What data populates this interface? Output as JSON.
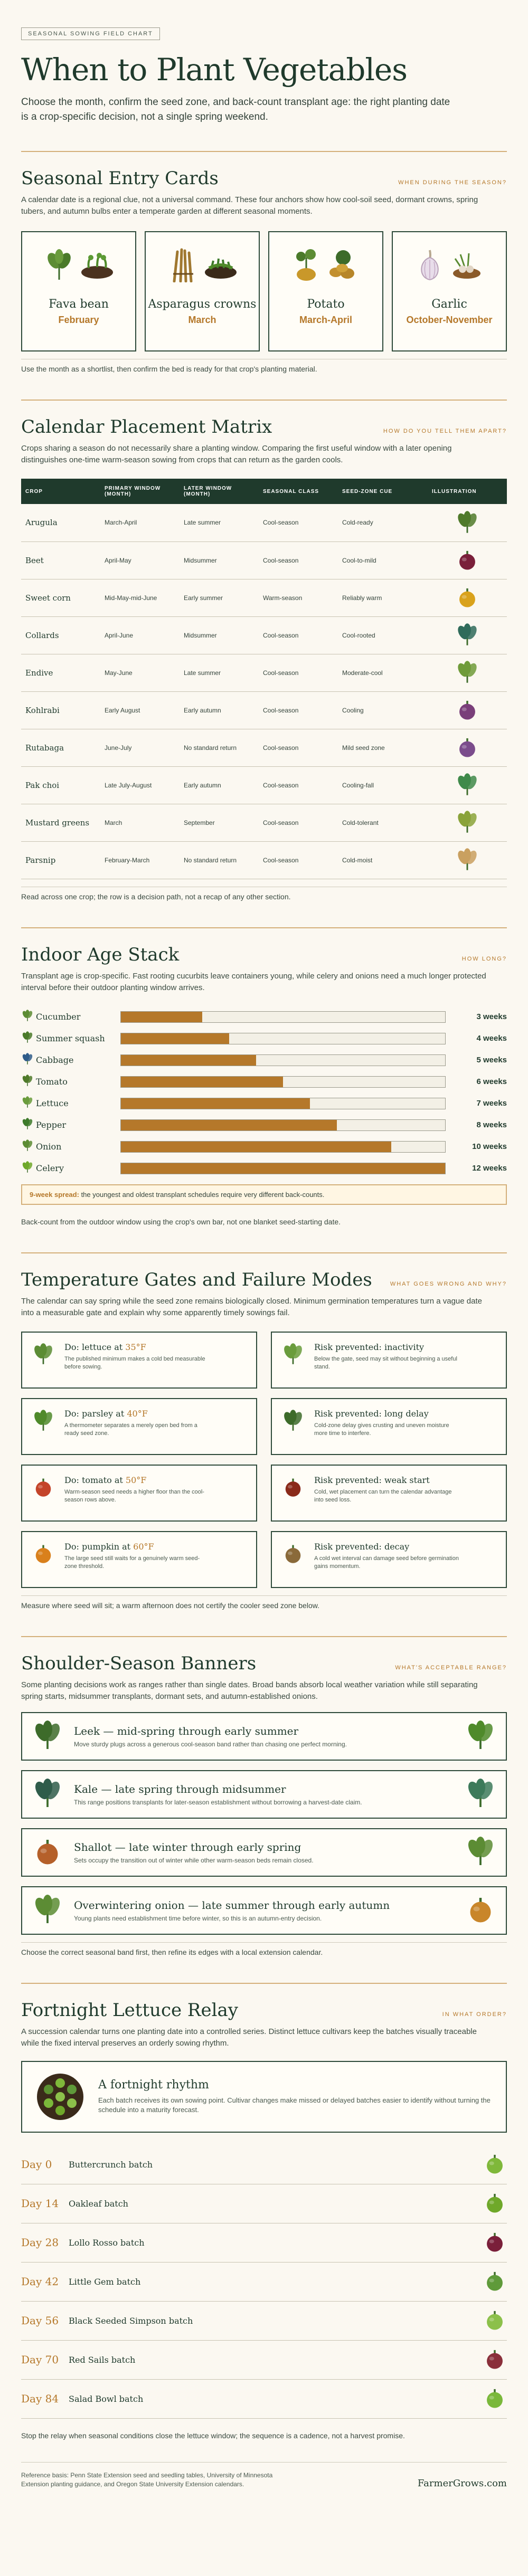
{
  "header": {
    "tag": "SEASONAL SOWING FIELD CHART",
    "title": "When to Plant Vegetables",
    "lede": "Choose the month, confirm the seed zone, and back-count transplant age: the right planting date is a crop-specific decision, not a single spring weekend."
  },
  "entry": {
    "title": "Seasonal Entry Cards",
    "kicker": "WHEN DURING THE SEASON?",
    "intro": "A calendar date is a regional clue, not a universal command. These four anchors show how cool-soil seed, dormant crowns, spring tubers, and autumn bulbs enter a temperate garden at different seasonal moments.",
    "cards": [
      {
        "name": "Fava bean",
        "month": "February",
        "icons": [
          "fava-leaves-icon",
          "soil-sprouts-icon"
        ]
      },
      {
        "name": "Asparagus crowns",
        "month": "March",
        "icons": [
          "asparagus-spears-icon",
          "soil-sprouts-icon"
        ]
      },
      {
        "name": "Potato",
        "month": "March-April",
        "icons": [
          "potato-plant-icon",
          "potato-pile-icon"
        ]
      },
      {
        "name": "Garlic",
        "month": "October-November",
        "icons": [
          "garlic-bulb-icon",
          "garlic-basket-icon"
        ]
      }
    ],
    "note": "Use the month as a shortlist, then confirm the bed is ready for that crop's planting material."
  },
  "matrix": {
    "title": "Calendar Placement Matrix",
    "kicker": "HOW DO YOU TELL THEM APART?",
    "intro": "Crops sharing a season do not necessarily share a planting window. Comparing the first useful window with a later opening distinguishes one-time warm-season sowing from crops that can return as the garden cools.",
    "columns": [
      "CROP",
      "PRIMARY WINDOW (MONTH)",
      "LATER WINDOW (MONTH)",
      "SEASONAL CLASS",
      "SEED-ZONE CUE",
      "ILLUSTRATION"
    ],
    "rows": [
      {
        "crop": "Arugula",
        "primary": "March-April",
        "later": "Late summer",
        "class": "Cool-season",
        "cue": "Cold-ready",
        "icon": "arugula-icon",
        "color": "#4f7a2a"
      },
      {
        "crop": "Beet",
        "primary": "April-May",
        "later": "Midsummer",
        "class": "Cool-season",
        "cue": "Cool-to-mild",
        "icon": "beet-icon",
        "color": "#7a1f3a"
      },
      {
        "crop": "Sweet corn",
        "primary": "Mid-May-mid-June",
        "later": "Early summer",
        "class": "Warm-season",
        "cue": "Reliably warm",
        "icon": "corn-icon",
        "color": "#d9a21c"
      },
      {
        "crop": "Collards",
        "primary": "April-June",
        "later": "Midsummer",
        "class": "Cool-season",
        "cue": "Cool-rooted",
        "icon": "collards-icon",
        "color": "#2f6b5a"
      },
      {
        "crop": "Endive",
        "primary": "May-June",
        "later": "Late summer",
        "class": "Cool-season",
        "cue": "Moderate-cool",
        "icon": "endive-icon",
        "color": "#6f9b3a"
      },
      {
        "crop": "Kohlrabi",
        "primary": "Early August",
        "later": "Early autumn",
        "class": "Cool-season",
        "cue": "Cooling",
        "icon": "kohlrabi-icon",
        "color": "#7a3f7a"
      },
      {
        "crop": "Rutabaga",
        "primary": "June-July",
        "later": "No standard return",
        "class": "Cool-season",
        "cue": "Mild seed zone",
        "icon": "rutabaga-icon",
        "color": "#7b4c8c"
      },
      {
        "crop": "Pak choi",
        "primary": "Late July-August",
        "later": "Early autumn",
        "class": "Cool-season",
        "cue": "Cooling-fall",
        "icon": "pak-choi-icon",
        "color": "#3f8a4a"
      },
      {
        "crop": "Mustard greens",
        "primary": "March",
        "later": "September",
        "class": "Cool-season",
        "cue": "Cold-tolerant",
        "icon": "mustard-greens-icon",
        "color": "#8aa33a"
      },
      {
        "crop": "Parsnip",
        "primary": "February-March",
        "later": "No standard return",
        "class": "Cool-season",
        "cue": "Cold-moist",
        "icon": "parsnip-icon",
        "color": "#c9a060"
      }
    ],
    "note": "Read across one crop; the row is a decision path, not a recap of any other section."
  },
  "age": {
    "title": "Indoor Age Stack",
    "kicker": "HOW LONG?",
    "intro": "Transplant age is crop-specific. Fast rooting cucurbits leave containers young, while celery and onions need a much longer protected interval before their outdoor planting window arrives.",
    "max_weeks": 12,
    "rows": [
      {
        "crop": "Cucumber",
        "weeks": 3,
        "label": "3 weeks",
        "icon": "cucumber-leaf-icon"
      },
      {
        "crop": "Summer squash",
        "weeks": 4,
        "label": "4 weeks",
        "icon": "squash-leaf-icon"
      },
      {
        "crop": "Cabbage",
        "weeks": 5,
        "label": "5 weeks",
        "icon": "cabbage-icon"
      },
      {
        "crop": "Tomato",
        "weeks": 6,
        "label": "6 weeks",
        "icon": "tomato-seedling-icon"
      },
      {
        "crop": "Lettuce",
        "weeks": 7,
        "label": "7 weeks",
        "icon": "lettuce-icon"
      },
      {
        "crop": "Pepper",
        "weeks": 8,
        "label": "8 weeks",
        "icon": "pepper-seedling-icon"
      },
      {
        "crop": "Onion",
        "weeks": 10,
        "label": "10 weeks",
        "icon": "onion-sprout-icon"
      },
      {
        "crop": "Celery",
        "weeks": 12,
        "label": "12 weeks",
        "icon": "celery-icon"
      }
    ],
    "callout_strong": "9-week spread:",
    "callout_rest": "the youngest and oldest transplant schedules require very different back-counts.",
    "note": "Back-count from the outdoor window using the crop's own bar, not one blanket seed-starting date."
  },
  "gates": {
    "title": "Temperature Gates and Failure Modes",
    "kicker": "WHAT GOES WRONG AND WHY?",
    "intro": "The calendar can say spring while the seed zone remains biologically closed. Minimum germination temperatures turn a vague date into a measurable gate and explain why some apparently timely sowings fail.",
    "items": [
      {
        "title": "Do: lettuce at ",
        "temp": "35°F",
        "text": "The published minimum makes a cold bed measurable before sowing.",
        "icon": "lettuce-thermometer-icon"
      },
      {
        "title": "Risk prevented: inactivity",
        "temp": "",
        "text": "Below the gate, seed may sit without beginning a useful stand.",
        "icon": "lettuce-head-icon"
      },
      {
        "title": "Do: parsley at ",
        "temp": "40°F",
        "text": "A thermometer separates a merely open bed from a ready seed zone.",
        "icon": "parsley-icon"
      },
      {
        "title": "Risk prevented: long delay",
        "temp": "",
        "text": "Cold-zone delay gives crusting and uneven moisture more time to interfere.",
        "icon": "parsley-bush-icon"
      },
      {
        "title": "Do: tomato at ",
        "temp": "50°F",
        "text": "Warm-season seed needs a higher floor than the cool-season rows above.",
        "icon": "tomato-icon"
      },
      {
        "title": "Risk prevented: weak start",
        "temp": "",
        "text": "Cold, wet placement can turn the calendar advantage into seed loss.",
        "icon": "tomato-rotting-icon"
      },
      {
        "title": "Do: pumpkin at ",
        "temp": "60°F",
        "text": "The large seed still waits for a genuinely warm seed-zone threshold.",
        "icon": "pumpkin-icon"
      },
      {
        "title": "Risk prevented: decay",
        "temp": "",
        "text": "A cold wet interval can damage seed before germination gains momentum.",
        "icon": "pumpkin-seed-icon"
      }
    ],
    "note": "Measure where seed will sit; a warm afternoon does not certify the cooler seed zone below."
  },
  "banners": {
    "title": "Shoulder-Season Banners",
    "kicker": "WHAT'S ACCEPTABLE RANGE?",
    "intro": "Some planting decisions work as ranges rather than single dates. Broad bands absorb local weather variation while still separating spring starts, midsummer transplants, dormant sets, and autumn-established onions.",
    "items": [
      {
        "title": "Leek — mid-spring through early summer",
        "desc": "Move sturdy plugs across a generous cool-season band rather than chasing one perfect morning.",
        "icon_left": "leek-icon",
        "icon_right": "leek-row-icon"
      },
      {
        "title": "Kale — late spring through midsummer",
        "desc": "This range positions transplants for later-season establishment without borrowing a harvest-date claim.",
        "icon_left": "kale-icon",
        "icon_right": "kale-plant-icon"
      },
      {
        "title": "Shallot — late winter through early spring",
        "desc": "Sets occupy the transition out of winter while other warm-season beds remain closed.",
        "icon_left": "shallot-icon",
        "icon_right": "shallot-row-icon"
      },
      {
        "title": "Overwintering onion — late summer through early autumn",
        "desc": "Young plants need establishment time before winter, so this is an autumn-entry decision.",
        "icon_left": "onion-sprouts-icon",
        "icon_right": "onion-bulbs-icon"
      }
    ],
    "note": "Choose the correct seasonal band first, then refine its edges with a local extension calendar."
  },
  "relay": {
    "title": "Fortnight Lettuce Relay",
    "kicker": "IN WHAT ORDER?",
    "intro": "A succession calendar turns one planting date into a controlled series. Distinct lettuce cultivars keep the batches visually traceable while the fixed interval preserves an orderly sowing rhythm.",
    "box_title": "A fortnight rhythm",
    "box_desc": "Each batch receives its own sowing point. Cultivar changes make missed or delayed batches easier to identify without turning the schedule into a maturity forecast.",
    "rows": [
      {
        "day": "Day 0",
        "batch": "Buttercrunch batch",
        "color": "#7fb83a"
      },
      {
        "day": "Day 14",
        "batch": "Oakleaf batch",
        "color": "#6fa82a"
      },
      {
        "day": "Day 28",
        "batch": "Lollo Rosso batch",
        "color": "#7a1f3a"
      },
      {
        "day": "Day 42",
        "batch": "Little Gem batch",
        "color": "#5f9a3a"
      },
      {
        "day": "Day 56",
        "batch": "Black Seeded Simpson batch",
        "color": "#8cc04a"
      },
      {
        "day": "Day 70",
        "batch": "Red Sails batch",
        "color": "#8a2f3a"
      },
      {
        "day": "Day 84",
        "batch": "Salad Bowl batch",
        "color": "#7ab83a"
      }
    ],
    "note": "Stop the relay when seasonal conditions close the lettuce window; the sequence is a cadence, not a harvest promise."
  },
  "footer": {
    "refs": "Reference basis: Penn State Extension seed and seedling tables, University of Minnesota Extension planting guidance, and Oregon State University Extension calendars.",
    "brand": "FarmerGrows.com"
  }
}
